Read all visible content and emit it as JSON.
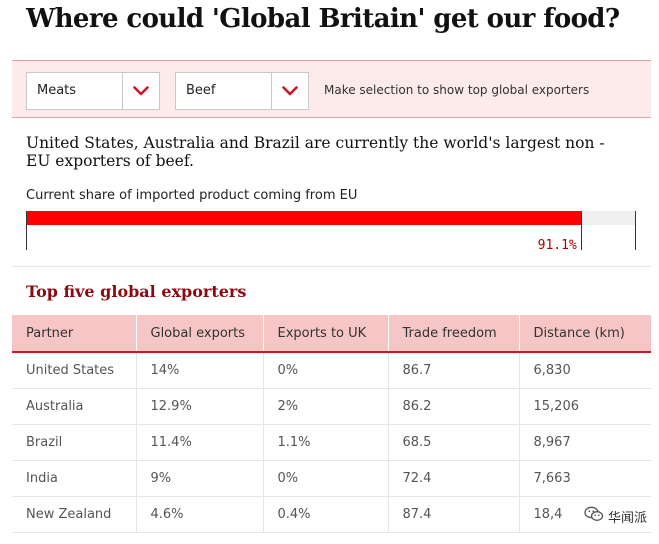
{
  "title": "Where could 'Global Britain' get our food?",
  "controls": {
    "category_select": {
      "value": "Meats"
    },
    "product_select": {
      "value": "Beef"
    },
    "hint": "Make selection to show top global exporters"
  },
  "summary": "United States, Australia and Brazil are currently the world's largest non - EU exporters of beef.",
  "eu_share": {
    "label": "Current share of imported product coming from EU",
    "value": 91.1,
    "value_label": "91.1%"
  },
  "exporters": {
    "title": "Top five global exporters",
    "columns": [
      "Partner",
      "Global exports",
      "Exports to UK",
      "Trade freedom",
      "Distance (km)"
    ],
    "rows": [
      [
        "United States",
        "14%",
        "0%",
        "86.7",
        "6,830"
      ],
      [
        "Australia",
        "12.9%",
        "2%",
        "86.2",
        "15,206"
      ],
      [
        "Brazil",
        "11.4%",
        "1.1%",
        "68.5",
        "8,967"
      ],
      [
        "India",
        "9%",
        "0%",
        "72.4",
        "7,663"
      ],
      [
        "New Zealand",
        "4.6%",
        "0.4%",
        "87.4",
        "18,4"
      ]
    ]
  },
  "watermark": {
    "text": "华闻派",
    "icon": "wechat-icon"
  },
  "colors": {
    "accent": "#ff0000",
    "header_bg": "#f6c6c6",
    "title_red": "#8b0a12",
    "control_bg": "#fdeaea"
  }
}
